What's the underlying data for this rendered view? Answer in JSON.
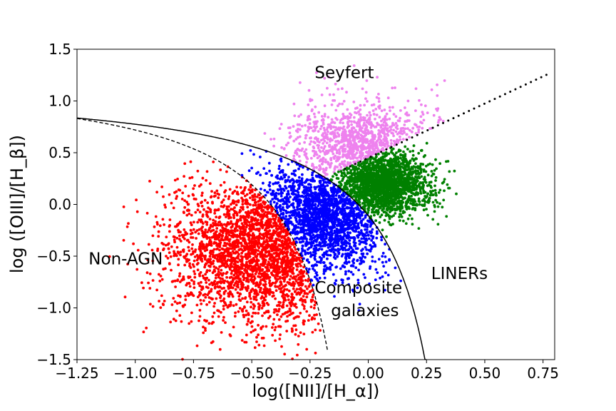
{
  "chart_data": {
    "type": "scatter",
    "title": "",
    "xlabel": "log([NII]/[H_α])",
    "ylabel": "log ([OIII]/[H_β])",
    "xlim": [
      -1.25,
      0.8
    ],
    "ylim": [
      -1.5,
      1.5
    ],
    "x_ticks": [
      -1.25,
      -1.0,
      -0.75,
      -0.5,
      -0.25,
      0.0,
      0.25,
      0.5,
      0.75
    ],
    "x_tick_labels": [
      "−1.25",
      "−1.00",
      "−0.75",
      "−0.50",
      "−0.25",
      "0.00",
      "0.25",
      "0.50",
      "0.75"
    ],
    "y_ticks": [
      1.5,
      1.0,
      0.5,
      0.0,
      -0.5,
      -1.0,
      -1.5
    ],
    "y_tick_labels": [
      "1.5",
      "1.0",
      "0.5",
      "0.0",
      "−0.5",
      "−1.0",
      "−1.5"
    ],
    "grid": false,
    "annotations": [
      {
        "text": "Seyfert",
        "x": -0.23,
        "y": 1.22
      },
      {
        "text": "Non-AGN",
        "x": -1.2,
        "y": -0.58
      },
      {
        "text": "LINERs",
        "x": 0.27,
        "y": -0.72
      },
      {
        "text": "Composite",
        "x": -0.23,
        "y": -0.86
      },
      {
        "text": "galaxies",
        "x": -0.16,
        "y": -1.08
      }
    ],
    "curves": [
      {
        "name": "kewley",
        "style": "solid",
        "formula": "0.61/(x-0.47)+1.19",
        "x_range": [
          -1.25,
          0.248
        ]
      },
      {
        "name": "kauffmann",
        "style": "dashed",
        "formula": "0.61/(x-0.05)+1.3",
        "x_range": [
          -1.25,
          -0.175
        ]
      },
      {
        "name": "liner-division",
        "style": "dotted",
        "formula": "1.05*x+0.45",
        "x_range": [
          -0.1,
          0.78
        ]
      }
    ],
    "series": [
      {
        "class": "non-agn",
        "color": "#ff0000",
        "count": 2600,
        "center": [
          -0.45,
          -0.45
        ],
        "spread": [
          0.2,
          0.35
        ]
      },
      {
        "class": "composite",
        "color": "#0000ff",
        "count": 1900,
        "center": [
          -0.18,
          -0.1
        ],
        "spread": [
          0.14,
          0.28
        ]
      },
      {
        "class": "seyfert",
        "color": "#ee82ee",
        "count": 1000,
        "center": [
          -0.02,
          0.55
        ],
        "spread": [
          0.16,
          0.22
        ]
      },
      {
        "class": "liner",
        "color": "#008000",
        "count": 2000,
        "center": [
          0.06,
          0.2
        ],
        "spread": [
          0.1,
          0.16
        ]
      }
    ]
  }
}
